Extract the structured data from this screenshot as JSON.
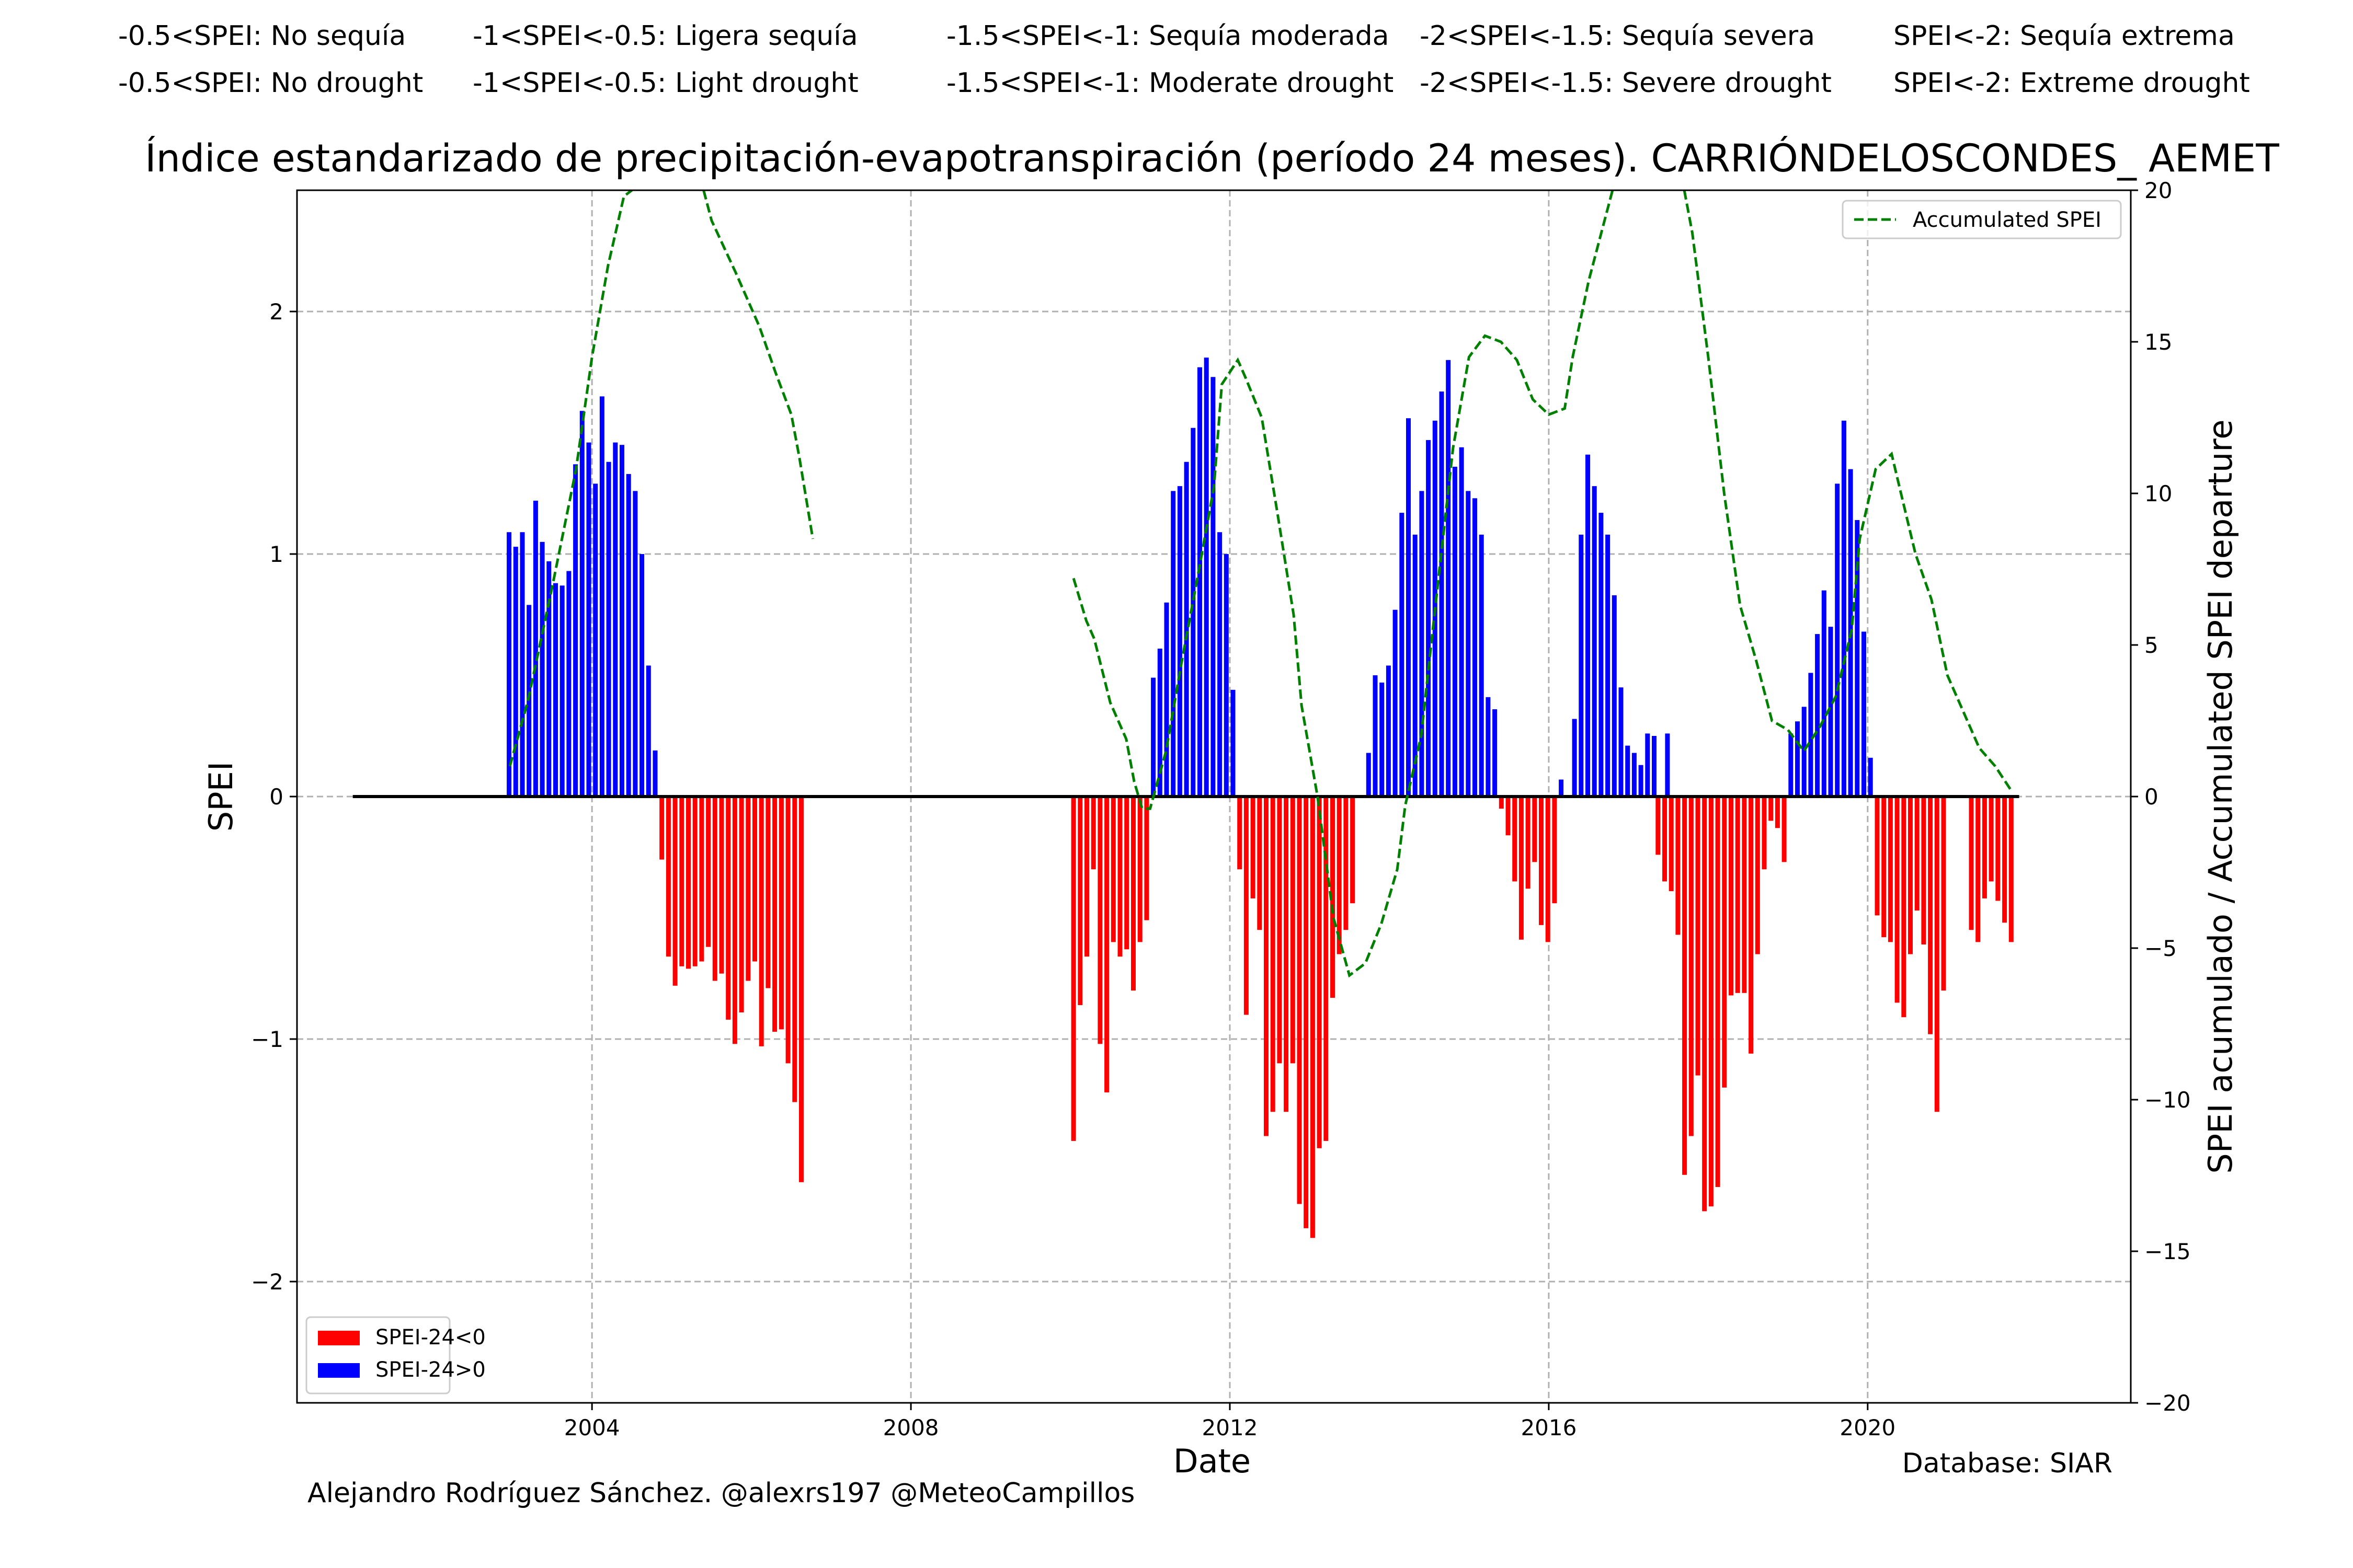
{
  "header": {
    "rows": [
      [
        "-0.5<SPEI: No sequía",
        "-1<SPEI<-0.5: Ligera sequía",
        "-1.5<SPEI<-1: Sequía moderada",
        "-2<SPEI<-1.5: Sequía severa",
        "SPEI<-2: Sequía extrema"
      ],
      [
        "-0.5<SPEI: No drought",
        "-1<SPEI<-0.5: Light drought",
        "-1.5<SPEI<-1: Moderate drought",
        "-2<SPEI<-1.5: Severe drought",
        "SPEI<-2: Extreme drought"
      ]
    ]
  },
  "footer": {
    "author": "Alejandro Rodríguez Sánchez. @alexrs197 @MeteoCampillos",
    "database": "Database: SIAR"
  },
  "colors": {
    "negative": "#ff0000",
    "positive": "#0000ff",
    "accumulated": "#008000",
    "grid": "#b0b0b0",
    "zero_line": "#000000"
  },
  "chart_data": {
    "type": "bar",
    "title": "Índice estandarizado de precipitación-evapotranspiración (período 24 meses). CARRIÓNDELOSCONDES_ AEMET",
    "xlabel": "Date",
    "ylabel": "SPEI",
    "y2label": "SPEI acumulado / Accumulated SPEI departure",
    "xlim": [
      2000.3,
      2023.3
    ],
    "ylim": [
      -2.5,
      2.5
    ],
    "y2lim": [
      -20,
      20
    ],
    "x_ticks": [
      2004,
      2008,
      2012,
      2016,
      2020
    ],
    "y_ticks": [
      -2,
      -1,
      0,
      1,
      2
    ],
    "y2_ticks": [
      -20,
      -15,
      -10,
      -5,
      0,
      5,
      10,
      15,
      20
    ],
    "zero_line_range": [
      2001.0,
      2021.9
    ],
    "grid": true,
    "legend": {
      "bars_position": "lower-left",
      "line_position": "upper-right",
      "bar_entries": [
        "SPEI-24<0",
        "SPEI-24>0"
      ],
      "line_entry": "Accumulated SPEI"
    },
    "bar_series": [
      {
        "start": 2002.96,
        "step": 0.0833,
        "values": [
          1.09,
          1.03,
          1.09,
          0.79,
          1.22,
          1.05,
          0.97,
          0.88,
          0.87,
          0.93,
          1.37,
          1.59,
          1.46,
          1.29,
          1.65,
          1.38,
          1.46,
          1.45,
          1.33,
          1.26,
          1.0,
          0.54,
          0.19,
          -0.26,
          -0.66,
          -0.78,
          -0.7,
          -0.71,
          -0.7,
          -0.68,
          -0.62,
          -0.76,
          -0.73,
          -0.92,
          -1.02,
          -0.89,
          -0.76,
          -0.68,
          -1.03,
          -0.79,
          -0.97,
          -0.96,
          -1.1,
          -1.26,
          -1.59
        ]
      },
      {
        "start": 2010.04,
        "step": 0.0833,
        "values": [
          -1.42,
          -0.86,
          -0.66,
          -0.3,
          -1.02,
          -1.22,
          -0.6,
          -0.66,
          -0.63,
          -0.8,
          -0.6,
          -0.51,
          0.49,
          0.61,
          0.8,
          1.26,
          1.28,
          1.38,
          1.52,
          1.77,
          1.81,
          1.73,
          1.09,
          1.0,
          0.44,
          -0.3,
          -0.9,
          -0.42,
          -0.55,
          -1.4,
          -1.3,
          -1.1,
          -1.3,
          -1.1,
          -1.68,
          -1.78,
          -1.82,
          -1.45,
          -1.42,
          -0.83,
          -0.65,
          -0.55,
          -0.44
        ]
      },
      {
        "start": 2013.74,
        "step": 0.0833,
        "values": [
          0.18,
          0.5,
          0.47,
          0.54,
          0.77,
          1.17,
          1.56,
          1.08,
          1.26,
          1.47,
          1.55,
          1.67,
          1.8,
          1.36,
          1.44,
          1.26,
          1.23,
          1.08,
          0.41,
          0.36,
          -0.05,
          -0.16,
          -0.35,
          -0.59,
          -0.38,
          -0.27,
          -0.53,
          -0.6,
          -0.44,
          0.07,
          0.0,
          0.32,
          1.08,
          1.41,
          1.28,
          1.17,
          1.08,
          0.83,
          0.45,
          0.21,
          0.18,
          0.13,
          0.26,
          0.25,
          0.0,
          0.26
        ]
      },
      {
        "start": 2017.37,
        "step": 0.0833,
        "values": [
          -0.24,
          -0.35,
          -0.39,
          -0.57,
          -1.56,
          -1.4,
          -1.15,
          -1.71,
          -1.69,
          -1.61,
          -1.2,
          -0.82,
          -0.81,
          -0.81,
          -1.06,
          -0.65,
          -0.3,
          -0.1,
          -0.13,
          -0.27,
          0.26,
          0.31,
          0.37,
          0.51,
          0.67,
          0.85,
          0.7,
          1.29,
          1.55,
          1.35,
          1.14,
          0.68,
          0.16,
          -0.49,
          -0.58,
          -0.6,
          -0.85,
          -0.91,
          -0.65,
          -0.47,
          -0.61,
          -0.98,
          -1.3,
          -0.8
        ]
      },
      {
        "start": 2021.3,
        "step": 0.0833,
        "values": [
          -0.55,
          -0.6,
          -0.42,
          -0.35,
          -0.43,
          -0.52,
          -0.6
        ]
      }
    ],
    "accumulated_spei": [
      {
        "x": [
          2002.97,
          2003.2,
          2003.5,
          2003.8,
          2004.0,
          2004.2,
          2004.4,
          2004.5
        ],
        "y": [
          1.0,
          3.2,
          6.9,
          10.8,
          14.5,
          17.5,
          19.8,
          20.0
        ]
      },
      {
        "x": [
          2005.4,
          2005.5,
          2005.8,
          2006.1,
          2006.3,
          2006.5,
          2006.6,
          2006.77
        ],
        "y": [
          20.0,
          19.0,
          17.3,
          15.5,
          14.0,
          12.6,
          11.2,
          8.5
        ]
      },
      {
        "x": [
          2010.04,
          2010.2,
          2010.3,
          2010.5,
          2010.7,
          2010.8,
          2010.9,
          2011.0,
          2011.2,
          2011.4,
          2011.6,
          2011.8,
          2011.9,
          2012.1,
          2012.2,
          2012.4,
          2012.6,
          2012.8,
          2012.9,
          2013.1,
          2013.3,
          2013.5,
          2013.7,
          2013.9,
          2014.1,
          2014.2,
          2014.4,
          2014.6,
          2014.8,
          2015.0,
          2015.2,
          2015.4,
          2015.6,
          2015.8,
          2016.0,
          2016.2,
          2016.3,
          2016.5,
          2016.7,
          2016.8
        ],
        "y": [
          7.2,
          5.8,
          5.2,
          3.1,
          1.9,
          0.5,
          -0.4,
          -0.4,
          1.5,
          4.5,
          7.3,
          10.2,
          13.6,
          14.4,
          13.8,
          12.5,
          9.3,
          6.0,
          3.0,
          0.0,
          -4.0,
          -5.9,
          -5.5,
          -4.2,
          -2.4,
          -0.3,
          2.0,
          6.8,
          11.5,
          14.5,
          15.2,
          15.0,
          14.4,
          13.1,
          12.6,
          12.8,
          14.5,
          17.0,
          19.0,
          20.0
        ]
      },
      {
        "x": [
          2017.7,
          2017.8,
          2018.0,
          2018.2,
          2018.4,
          2018.6,
          2018.8,
          2019.0,
          2019.2,
          2019.4,
          2019.6,
          2019.8,
          2019.9,
          2020.1,
          2020.3,
          2020.4,
          2020.6,
          2020.8,
          2021.0,
          2021.2,
          2021.4,
          2021.6,
          2021.8
        ],
        "y": [
          20.0,
          18.6,
          14.5,
          10.0,
          6.3,
          4.5,
          2.5,
          2.2,
          1.5,
          2.3,
          3.3,
          5.5,
          8.5,
          10.8,
          11.3,
          10.2,
          8.0,
          6.5,
          4.0,
          2.8,
          1.6,
          1.0,
          0.2
        ]
      }
    ]
  }
}
